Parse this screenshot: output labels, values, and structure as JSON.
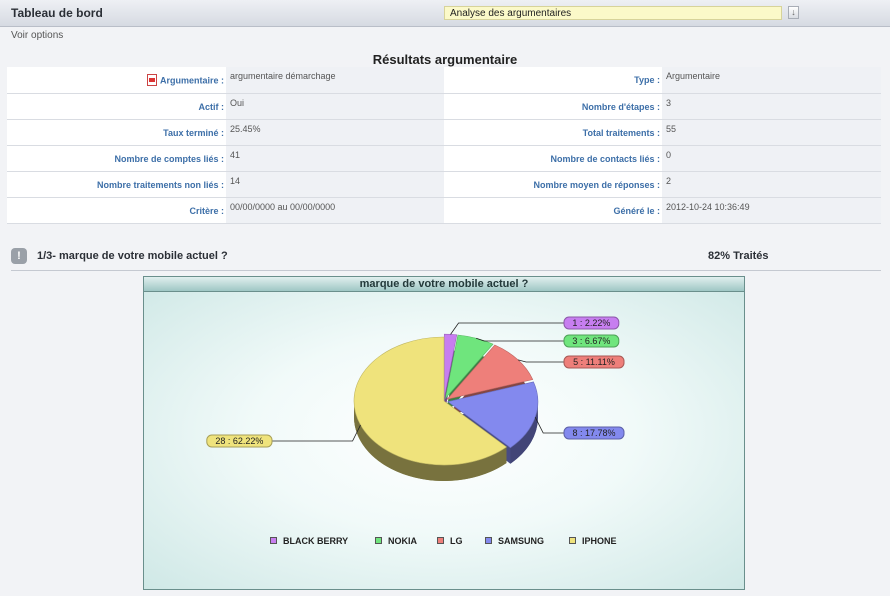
{
  "header": {
    "title": "Tableau de bord",
    "select_value": "Analyse des argumentaires"
  },
  "options_link": "Voir options",
  "results": {
    "title": "Résultats argumentaire",
    "rows": [
      {
        "l1": "Argumentaire :",
        "v1": "argumentaire démarchage",
        "l2": "Type :",
        "v2": "Argumentaire"
      },
      {
        "l1": "Actif :",
        "v1": "Oui",
        "l2": "Nombre d'étapes :",
        "v2": "3"
      },
      {
        "l1": "Taux terminé :",
        "v1": "25.45%",
        "l2": "Total traitements :",
        "v2": "55"
      },
      {
        "l1": "Nombre de comptes liés :",
        "v1": "41",
        "l2": "Nombre de contacts liés :",
        "v2": "0"
      },
      {
        "l1": "Nombre traitements non liés :",
        "v1": "14",
        "l2": "Nombre moyen de réponses :",
        "v2": "2"
      },
      {
        "l1": "Critère :",
        "v1": "00/00/0000 au 00/00/0000",
        "l2": "Généré le :",
        "v2": "2012-10-24 10:36:49"
      }
    ]
  },
  "question": {
    "icon": "!",
    "text": "1/3- marque de votre mobile actuel ?",
    "percent": "82% Traités"
  },
  "chart_data": {
    "type": "pie",
    "title": "marque de votre mobile actuel ?",
    "slices": [
      {
        "name": "BLACK BERRY",
        "count": 1,
        "pct": 2.22,
        "label": "1 : 2.22%",
        "color": "#c77ef0"
      },
      {
        "name": "NOKIA",
        "count": 3,
        "pct": 6.67,
        "label": "3 : 6.67%",
        "color": "#6fe57d"
      },
      {
        "name": "LG",
        "count": 5,
        "pct": 11.11,
        "label": "5 : 11.11%",
        "color": "#ee7f7a"
      },
      {
        "name": "SAMSUNG",
        "count": 8,
        "pct": 17.78,
        "label": "8 : 17.78%",
        "color": "#8389ee"
      },
      {
        "name": "IPHONE",
        "count": 28,
        "pct": 62.22,
        "label": "28 : 62.22%",
        "color": "#efe37c"
      }
    ],
    "legend_position": "bottom"
  }
}
